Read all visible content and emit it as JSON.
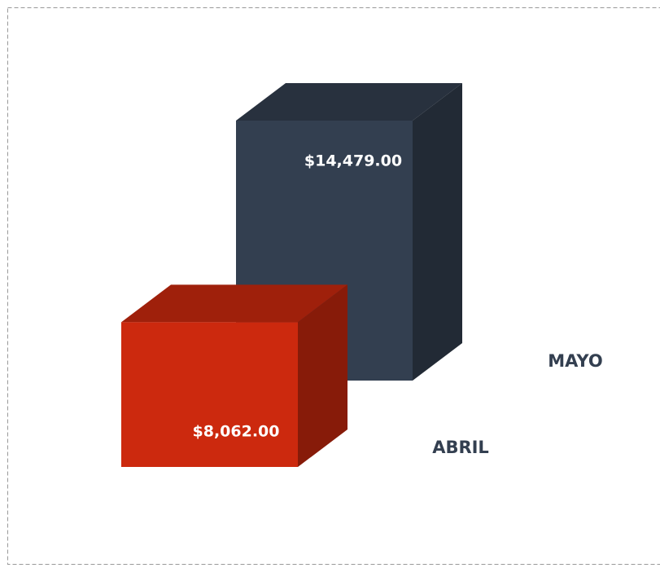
{
  "chart_data": {
    "type": "bar3d",
    "categories": [
      null
    ],
    "series": [
      {
        "name": "ABRIL",
        "color": "#cc290e",
        "values": [
          8062
        ],
        "value_labels": [
          "$8,062.00"
        ]
      },
      {
        "name": "MAYO",
        "color": "#333f50",
        "values": [
          14479
        ],
        "value_labels": [
          "$14,479.00"
        ]
      }
    ]
  }
}
